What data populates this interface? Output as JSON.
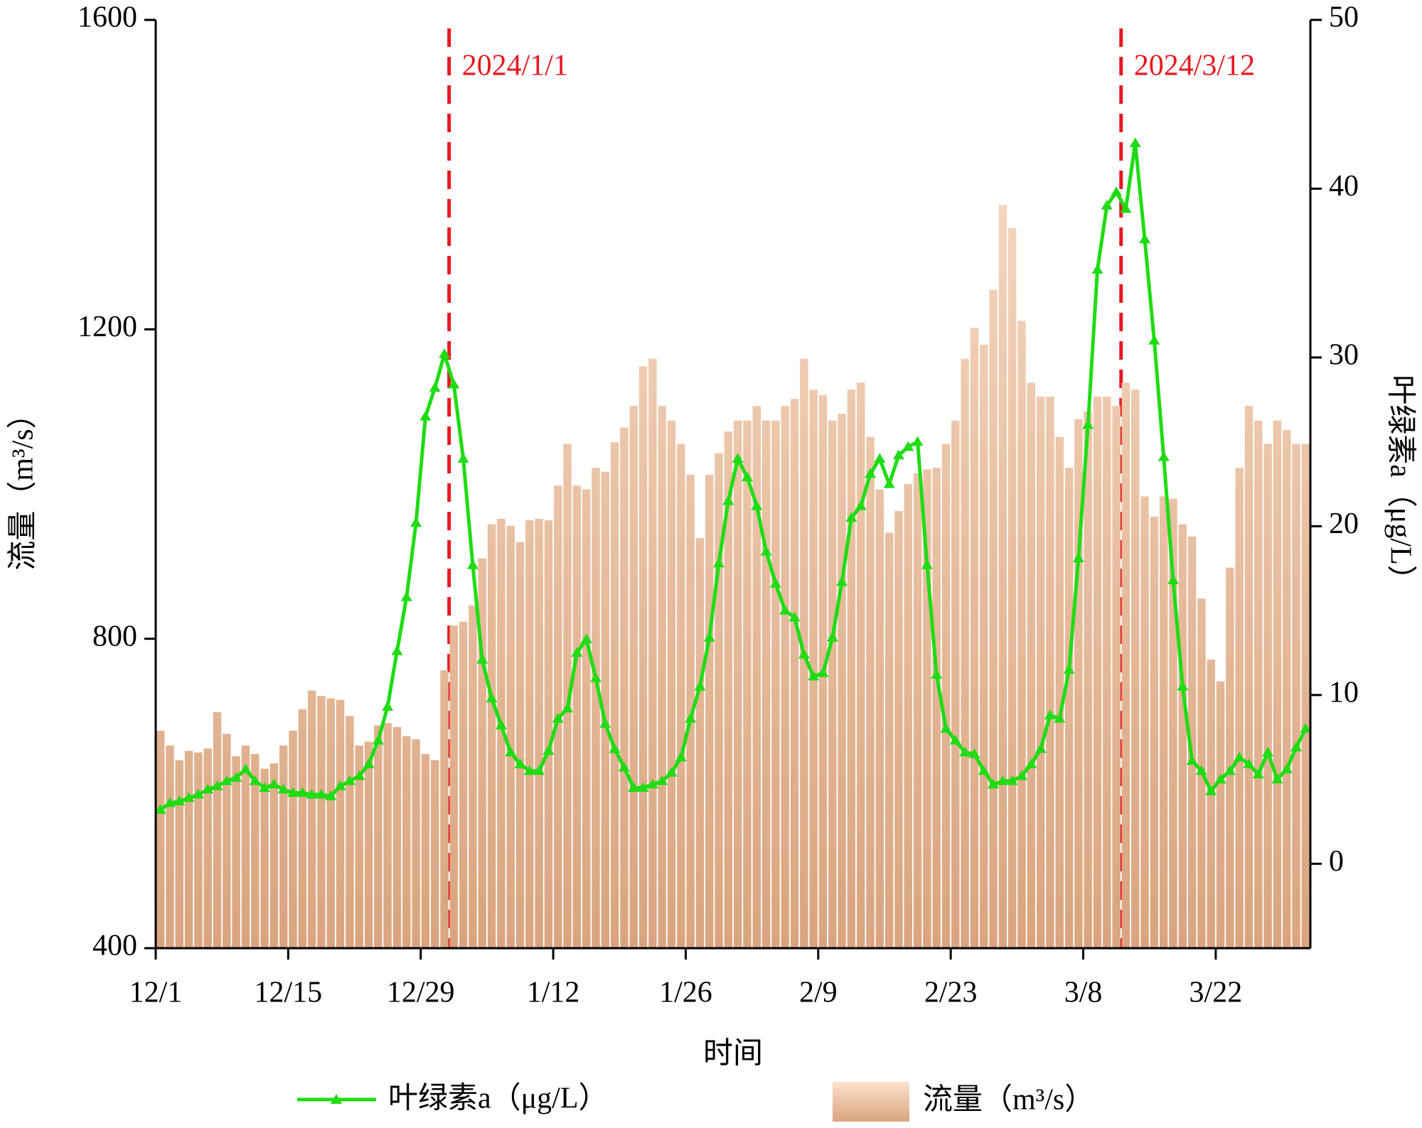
{
  "chart_data": {
    "type": "combo",
    "x_label": "时间",
    "y_label": "流量（m³/s）",
    "y2_label": "叶绿素a（μg/L）",
    "categories": [
      "12/1",
      null,
      null,
      null,
      null,
      null,
      null,
      null,
      null,
      null,
      null,
      null,
      null,
      null,
      "12/15",
      null,
      null,
      null,
      null,
      null,
      null,
      null,
      null,
      null,
      null,
      null,
      null,
      null,
      "12/29",
      null,
      null,
      null,
      null,
      null,
      null,
      null,
      null,
      null,
      null,
      null,
      null,
      null,
      "1/12",
      null,
      null,
      null,
      null,
      null,
      null,
      null,
      null,
      null,
      null,
      null,
      null,
      null,
      "1/26",
      null,
      null,
      null,
      null,
      null,
      null,
      null,
      null,
      null,
      null,
      null,
      null,
      null,
      "2/9",
      null,
      null,
      null,
      null,
      null,
      null,
      null,
      null,
      null,
      null,
      null,
      null,
      null,
      "2/23",
      null,
      null,
      null,
      null,
      null,
      null,
      null,
      null,
      null,
      null,
      null,
      null,
      null,
      "3/8",
      null,
      null,
      null,
      null,
      null,
      null,
      null,
      null,
      null,
      null,
      null,
      null,
      null,
      "3/22",
      null,
      null,
      null,
      null,
      null,
      null,
      null,
      null,
      null
    ],
    "series": [
      {
        "name": "叶绿素a（μg/L）",
        "type": "line",
        "axis": "y2",
        "color": "#1fdc14",
        "values": [
          3.2,
          3.6,
          3.7,
          3.9,
          4.1,
          4.4,
          4.6,
          4.9,
          5.1,
          5.6,
          4.9,
          4.5,
          4.7,
          4.4,
          4.2,
          4.2,
          4.1,
          4.1,
          4.0,
          4.6,
          4.9,
          5.2,
          5.9,
          7.3,
          9.3,
          12.6,
          15.8,
          20.2,
          26.5,
          28.2,
          30.2,
          28.4,
          24.0,
          17.7,
          12.1,
          9.8,
          8.2,
          6.6,
          5.9,
          5.5,
          5.5,
          6.7,
          8.6,
          9.2,
          12.5,
          13.3,
          11.0,
          8.3,
          6.8,
          5.7,
          4.5,
          4.5,
          4.7,
          4.9,
          5.4,
          6.3,
          8.6,
          10.5,
          13.4,
          17.8,
          21.5,
          24.0,
          22.9,
          21.2,
          18.5,
          16.6,
          15.0,
          14.6,
          12.4,
          11.1,
          11.3,
          13.4,
          16.7,
          20.5,
          21.2,
          23.1,
          24.0,
          22.5,
          24.2,
          24.7,
          25.0,
          17.7,
          11.2,
          8.0,
          7.3,
          6.6,
          6.5,
          5.5,
          4.7,
          4.9,
          4.9,
          5.2,
          5.9,
          6.8,
          8.8,
          8.6,
          11.5,
          18.1,
          26.0,
          35.2,
          39.0,
          39.8,
          38.8,
          42.7,
          37.0,
          31.0,
          24.1,
          16.8,
          10.5,
          6.1,
          5.5,
          4.3,
          5.0,
          5.5,
          6.3,
          5.9,
          5.3,
          6.6,
          5.0,
          5.6,
          6.9,
          8.0
        ]
      },
      {
        "name": "流量（m³/s）",
        "type": "bar",
        "axis": "y",
        "color": "#fbe2cd",
        "values": [
          681,
          662,
          643,
          655,
          653,
          658,
          705,
          677,
          648,
          662,
          651,
          632,
          639,
          662,
          681,
          709,
          733,
          726,
          723,
          721,
          700,
          662,
          667,
          688,
          691,
          686,
          674,
          670,
          651,
          643,
          759,
          817,
          822,
          843,
          904,
          948,
          955,
          946,
          925,
          953,
          955,
          953,
          998,
          1052,
          998,
          993,
          1021,
          1016,
          1054,
          1073,
          1101,
          1152,
          1162,
          1101,
          1082,
          1052,
          1012,
          930,
          1012,
          1040,
          1068,
          1082,
          1082,
          1101,
          1082,
          1082,
          1101,
          1110,
          1162,
          1122,
          1115,
          1082,
          1091,
          1122,
          1131,
          1061,
          993,
          937,
          965,
          1000,
          1014,
          1019,
          1021,
          1052,
          1082,
          1162,
          1202,
          1180,
          1251,
          1361,
          1331,
          1211,
          1131,
          1113,
          1113,
          1061,
          1021,
          1084,
          1094,
          1113,
          1113,
          1101,
          1131,
          1122,
          984,
          958,
          984,
          981,
          948,
          932,
          852,
          773,
          745,
          892,
          1021,
          1101,
          1082,
          1052,
          1082,
          1070,
          1052,
          1052
        ]
      }
    ],
    "ylim": [
      400,
      1600
    ],
    "yticks": [
      400,
      800,
      1200,
      1600
    ],
    "y2lim": [
      -5,
      50
    ],
    "y2ticks": [
      0,
      10,
      20,
      30,
      40,
      50
    ],
    "annotations": [
      {
        "text": "2024/1/1",
        "x": 31,
        "color": "#e8191f"
      },
      {
        "text": "2024/3/12",
        "x": 102,
        "color": "#e8191f"
      }
    ]
  }
}
